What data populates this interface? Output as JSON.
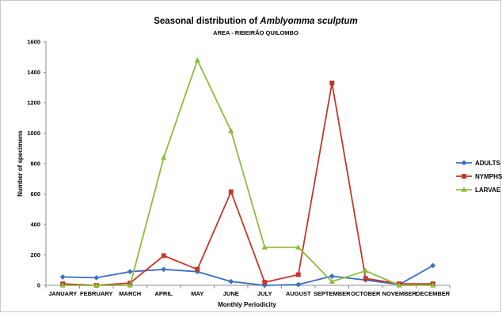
{
  "chart_data": {
    "type": "line",
    "title": "Seasonal distribution of ",
    "title_species": "Amblyomma sculptum",
    "subtitle": "AREA - RIBEIRÃO QUILOMBO",
    "subtitle_color": "#e31a1c",
    "xlabel": "Monthly Periodicity",
    "ylabel": "Number of specimens",
    "ylim": [
      0,
      1600
    ],
    "yticks": [
      "0",
      "200",
      "400",
      "600",
      "800",
      "1000",
      "1200",
      "1400",
      "1600"
    ],
    "grid": false,
    "legend": "right",
    "categories": [
      "JANUARY",
      "FEBRUARY",
      "MARCH",
      "APRIL",
      "MAY",
      "JUNE",
      "JULY",
      "AUGUST",
      "SEPTEMBER",
      "OCTOBER",
      "NOVEMBER",
      "DECEMBER"
    ],
    "series": [
      {
        "name": "ADULTS",
        "color": "#3a6fc4",
        "marker": "diamond",
        "values": [
          55,
          50,
          90,
          105,
          90,
          25,
          0,
          5,
          60,
          35,
          5,
          130
        ]
      },
      {
        "name": "NYMPHS",
        "color": "#c0392b",
        "marker": "square",
        "values": [
          10,
          0,
          15,
          195,
          105,
          615,
          20,
          70,
          1330,
          45,
          10,
          10
        ]
      },
      {
        "name": "LARVAE",
        "color": "#8bbd3c",
        "marker": "triangle",
        "values": [
          0,
          0,
          0,
          840,
          1480,
          1015,
          250,
          250,
          25,
          95,
          0,
          0
        ]
      }
    ]
  }
}
